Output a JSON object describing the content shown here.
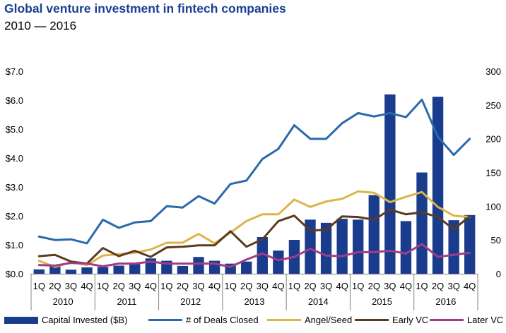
{
  "header": {
    "title": "Global venture investment in fintech companies",
    "subtitle": "2010 — 2016"
  },
  "colors": {
    "capital": "#1a3c8c",
    "deals": "#2a6aab",
    "angel": "#ddb448",
    "early": "#5b3a22",
    "later": "#a33c86"
  },
  "chart_data": {
    "type": "bar",
    "x_quarters": [
      "1Q",
      "2Q",
      "3Q",
      "4Q",
      "1Q",
      "2Q",
      "3Q",
      "4Q",
      "1Q",
      "2Q",
      "3Q",
      "4Q",
      "1Q",
      "2Q",
      "3Q",
      "4Q",
      "1Q",
      "2Q",
      "3Q",
      "4Q",
      "1Q",
      "2Q",
      "3Q",
      "4Q",
      "1Q",
      "2Q",
      "3Q",
      "4Q"
    ],
    "x_years": [
      "2010",
      "2011",
      "2012",
      "2013",
      "2014",
      "2015",
      "2016"
    ],
    "left_axis": {
      "ticks": [
        "$0.0",
        "$1.0",
        "$2.0",
        "$3.0",
        "$4.0",
        "$5.0",
        "$6.0",
        "$7.0"
      ],
      "range": [
        0,
        7
      ]
    },
    "right_axis": {
      "ticks": [
        "0",
        "50",
        "100",
        "150",
        "200",
        "250",
        "300"
      ],
      "range": [
        0,
        300
      ]
    },
    "series": [
      {
        "name": "Capital Invested ($B)",
        "type": "bar",
        "axis": "left",
        "values": [
          0.15,
          0.27,
          0.14,
          0.22,
          0.23,
          0.28,
          0.33,
          0.53,
          0.45,
          0.27,
          0.58,
          0.45,
          0.35,
          0.42,
          1.27,
          0.8,
          1.17,
          1.87,
          1.76,
          1.9,
          1.87,
          2.72,
          6.2,
          1.82,
          3.5,
          6.12,
          1.85,
          2.03
        ]
      },
      {
        "name": "# of Deals Closed",
        "type": "line",
        "axis": "right",
        "values": [
          55,
          50,
          51,
          45,
          80,
          68,
          76,
          78,
          100,
          98,
          115,
          104,
          133,
          138,
          170,
          185,
          220,
          200,
          200,
          223,
          238,
          233,
          238,
          232,
          258,
          203,
          176,
          200
        ]
      },
      {
        "name": "Angel/Seed",
        "type": "line",
        "axis": "right",
        "values": [
          19,
          10,
          17,
          13,
          27,
          29,
          31,
          36,
          46,
          46,
          59,
          45,
          61,
          78,
          88,
          88,
          110,
          99,
          107,
          111,
          122,
          120,
          106,
          114,
          121,
          99,
          86,
          84
        ]
      },
      {
        "name": "Early VC",
        "type": "line",
        "axis": "right",
        "values": [
          26,
          28,
          18,
          15,
          38,
          26,
          34,
          25,
          39,
          40,
          42,
          42,
          63,
          40,
          51,
          78,
          86,
          64,
          65,
          85,
          84,
          80,
          95,
          88,
          91,
          84,
          66,
          85
        ]
      },
      {
        "name": "Later VC",
        "type": "line",
        "axis": "right",
        "values": [
          13,
          12,
          16,
          15,
          11,
          15,
          15,
          18,
          15,
          15,
          15,
          15,
          10,
          21,
          30,
          20,
          25,
          37,
          27,
          26,
          32,
          32,
          34,
          30,
          44,
          25,
          28,
          31
        ]
      }
    ]
  }
}
